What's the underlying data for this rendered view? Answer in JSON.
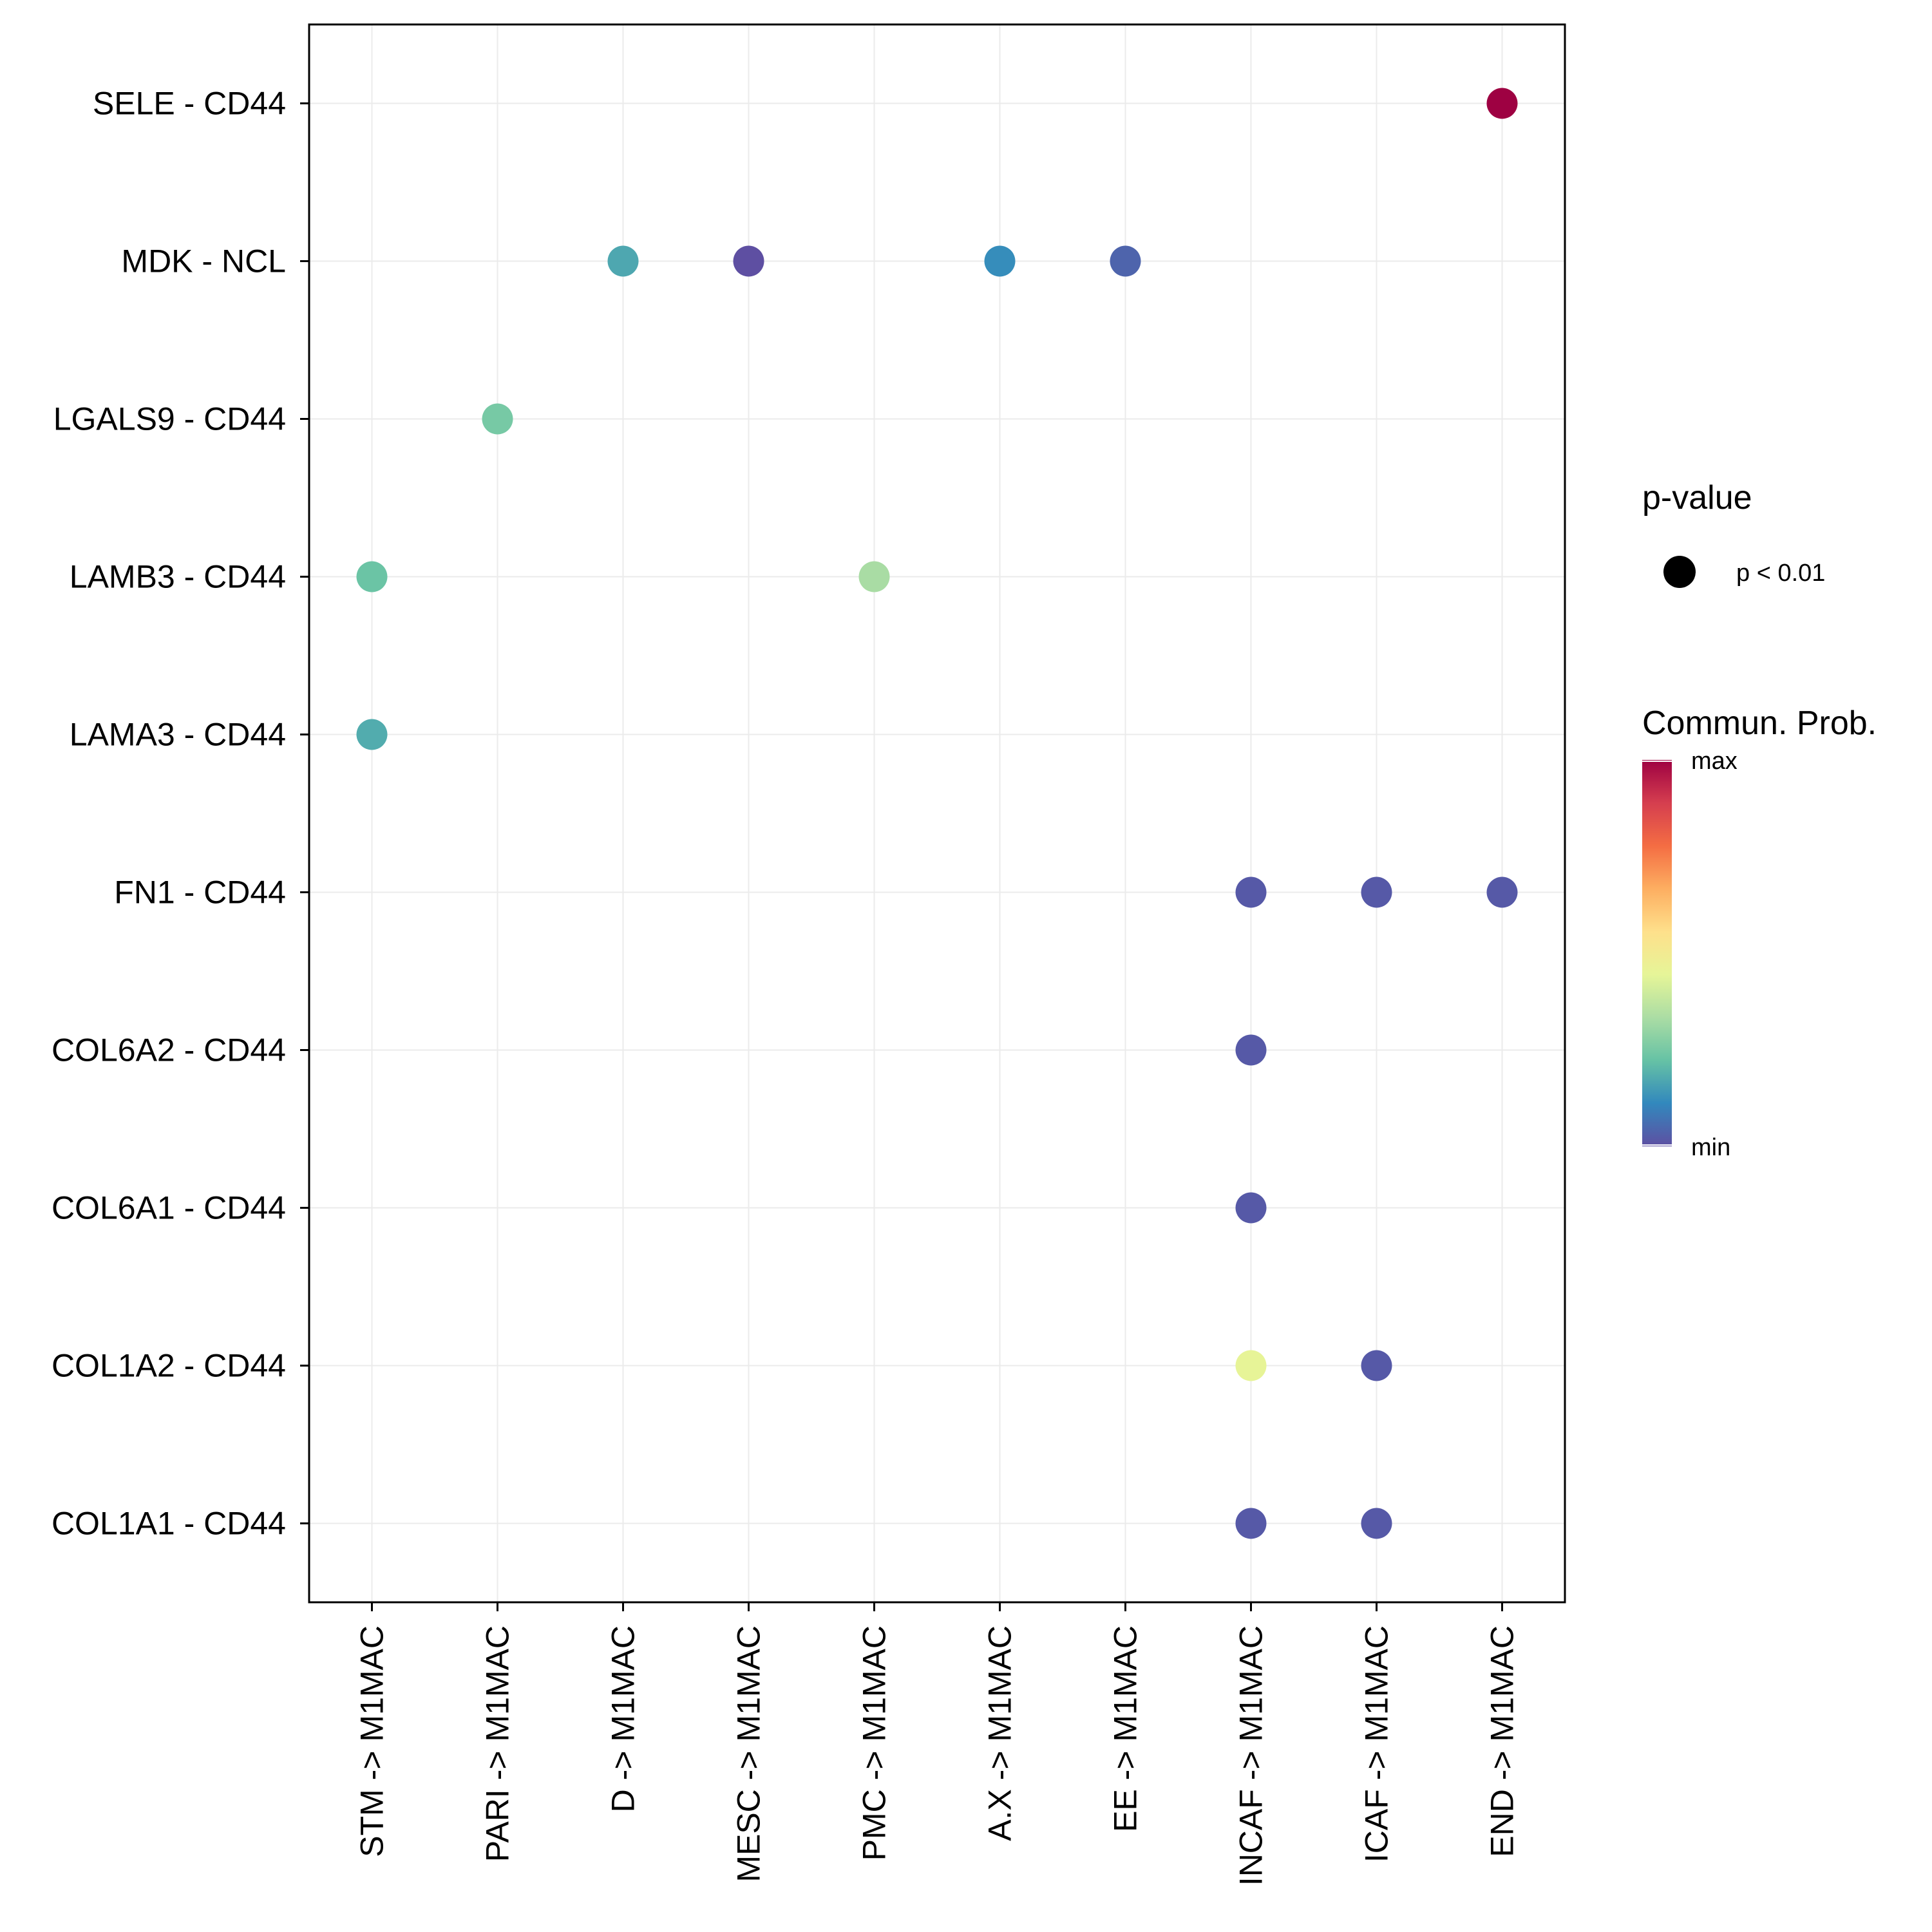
{
  "chart_data": {
    "type": "scatter",
    "title": "",
    "xlabel": "",
    "ylabel": "",
    "x_categories": [
      "STM -> M1MAC",
      "PARI -> M1MAC",
      "D -> M1MAC",
      "MESC -> M1MAC",
      "PMC -> M1MAC",
      "A.X -> M1MAC",
      "EE -> M1MAC",
      "INCAF -> M1MAC",
      "ICAF -> M1MAC",
      "END -> M1MAC"
    ],
    "y_categories": [
      "SELE - CD44",
      "MDK - NCL",
      "LGALS9 - CD44",
      "LAMB3 - CD44",
      "LAMA3 - CD44",
      "FN1 - CD44",
      "COL6A2 - CD44",
      "COL6A1 - CD44",
      "COL1A2 - CD44",
      "COL1A1 - CD44"
    ],
    "points": [
      {
        "x": "END -> M1MAC",
        "y": "SELE - CD44",
        "prob": 1.0
      },
      {
        "x": "D -> M1MAC",
        "y": "MDK - NCL",
        "prob": 0.17
      },
      {
        "x": "MESC -> M1MAC",
        "y": "MDK - NCL",
        "prob": 0.0
      },
      {
        "x": "A.X -> M1MAC",
        "y": "MDK - NCL",
        "prob": 0.12
      },
      {
        "x": "EE -> M1MAC",
        "y": "MDK - NCL",
        "prob": 0.04
      },
      {
        "x": "PARI -> M1MAC",
        "y": "LGALS9 - CD44",
        "prob": 0.25
      },
      {
        "x": "STM -> M1MAC",
        "y": "LAMB3 - CD44",
        "prob": 0.23
      },
      {
        "x": "PMC -> M1MAC",
        "y": "LAMB3 - CD44",
        "prob": 0.33
      },
      {
        "x": "STM -> M1MAC",
        "y": "LAMA3 - CD44",
        "prob": 0.18
      },
      {
        "x": "INCAF -> M1MAC",
        "y": "FN1 - CD44",
        "prob": 0.02
      },
      {
        "x": "ICAF -> M1MAC",
        "y": "FN1 - CD44",
        "prob": 0.02
      },
      {
        "x": "END -> M1MAC",
        "y": "FN1 - CD44",
        "prob": 0.02
      },
      {
        "x": "INCAF -> M1MAC",
        "y": "COL6A2 - CD44",
        "prob": 0.02
      },
      {
        "x": "INCAF -> M1MAC",
        "y": "COL6A1 - CD44",
        "prob": 0.02
      },
      {
        "x": "INCAF -> M1MAC",
        "y": "COL1A2 - CD44",
        "prob": 0.45
      },
      {
        "x": "ICAF -> M1MAC",
        "y": "COL1A2 - CD44",
        "prob": 0.02
      },
      {
        "x": "INCAF -> M1MAC",
        "y": "COL1A1 - CD44",
        "prob": 0.02
      },
      {
        "x": "ICAF -> M1MAC",
        "y": "COL1A1 - CD44",
        "prob": 0.02
      }
    ],
    "color_scale": {
      "name": "Spectral",
      "stops": [
        "#5E4FA2",
        "#3288BD",
        "#66C2A5",
        "#ABDDA4",
        "#E6F598",
        "#FEE08B",
        "#FDAE61",
        "#F46D43",
        "#D53E4F",
        "#9E0142"
      ]
    },
    "legend": {
      "pvalue_title": "p-value",
      "pvalue_label": "p < 0.01",
      "color_title": "Commun. Prob.",
      "max_label": "max",
      "min_label": "min",
      "position": "right"
    },
    "grid": true
  }
}
